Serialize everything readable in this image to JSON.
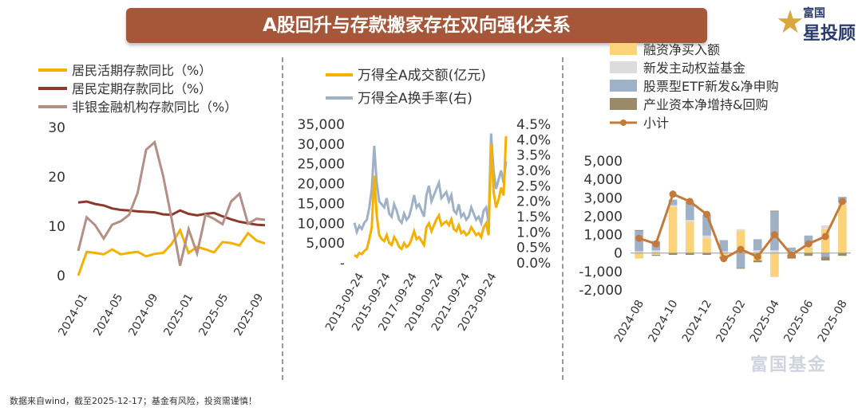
{
  "header": {
    "title": "A股回升与存款搬家存在双向强化关系",
    "logo_brand": "富国",
    "logo_sub": "星投顾",
    "logo_star_color": "#d9a640",
    "title_bg_color": "#a6573a"
  },
  "footer": {
    "note": "数据来自wind，截至2025-12-17；基金有风险，投资需谨慎！"
  },
  "watermark": {
    "text": "富国基金"
  },
  "chart_data": [
    {
      "type": "line",
      "title": "",
      "x_labels": [
        "2024-01",
        "2024-05",
        "2024-09",
        "2025-01",
        "2025-05",
        "2025-09"
      ],
      "ylim": [
        0,
        30
      ],
      "yticks": [
        "0",
        "10",
        "20",
        "30"
      ],
      "series": [
        {
          "name": "居民活期存款同比（%）",
          "color": "#f5b000",
          "values": [
            0,
            4.8,
            4.6,
            4.3,
            5.3,
            4.3,
            4.6,
            4.8,
            3.9,
            4.4,
            4.6,
            6.4,
            9.2,
            4.6,
            5.8,
            5.3,
            4.7,
            6.8,
            6.6,
            6.1,
            8.6,
            7.1,
            6.5
          ]
        },
        {
          "name": "居民定期存款同比（%）",
          "color": "#8b3a2c",
          "values": [
            14.8,
            15.0,
            14.5,
            14.2,
            13.6,
            13.3,
            13.2,
            13.0,
            12.9,
            12.8,
            12.4,
            12.3,
            13.2,
            12.5,
            12.2,
            12.5,
            12.7,
            12.0,
            11.4,
            10.9,
            10.6,
            10.3,
            10.2
          ]
        },
        {
          "name": "非银金融机构存款同比（%）",
          "color": "#b38f86",
          "values": [
            5,
            11.8,
            10.2,
            7.5,
            10.3,
            11.0,
            12.3,
            16.8,
            25.5,
            27,
            20.2,
            11.5,
            2.0,
            9.4,
            4.5,
            12.3,
            11.5,
            10.4,
            15.0,
            16.6,
            10.5,
            11.5,
            11.3
          ]
        }
      ]
    },
    {
      "type": "line",
      "title": "",
      "x_labels": [
        "2013-09-24",
        "2015-09-24",
        "2017-09-24",
        "2019-09-24",
        "2021-09-24",
        "2023-09-24"
      ],
      "ylim_left": [
        0,
        35000
      ],
      "yticks_left": [
        "-",
        "5,000",
        "10,000",
        "15,000",
        "20,000",
        "25,000",
        "30,000",
        "35,000"
      ],
      "ylim_right": [
        0,
        4.5
      ],
      "yticks_right": [
        "0.0%",
        "0.5%",
        "1.0%",
        "1.5%",
        "2.0%",
        "2.5%",
        "3.0%",
        "3.5%",
        "4.0%",
        "4.5%"
      ],
      "series": [
        {
          "name": "万得全A成交额(亿元)",
          "axis": "left",
          "color": "#f5b000",
          "values": [
            2000,
            1500,
            2500,
            2200,
            3000,
            3500,
            6000,
            9000,
            22000,
            12000,
            7000,
            6000,
            5500,
            7000,
            5000,
            4500,
            6500,
            5500,
            4000,
            3500,
            5000,
            4000,
            4500,
            6000,
            8000,
            6000,
            6500,
            5500,
            4500,
            9000,
            10000,
            8000,
            9500,
            11000,
            12000,
            9500,
            10000,
            10500,
            9500,
            11000,
            8500,
            8000,
            9500,
            7500,
            8000,
            7000,
            7500,
            9000,
            8000,
            7000,
            7500,
            6500,
            9000,
            10000,
            7000,
            30000,
            18000,
            14000,
            16000,
            19000,
            17000,
            32000
          ]
        },
        {
          "name": "万得全A换手率(右)",
          "axis": "right",
          "color": "#9fb1c6",
          "values": [
            1.3,
            1.0,
            1.2,
            1.1,
            1.3,
            1.4,
            1.8,
            2.4,
            3.8,
            2.6,
            2.0,
            1.9,
            1.8,
            2.1,
            1.6,
            1.5,
            1.9,
            1.7,
            1.4,
            1.3,
            1.6,
            1.4,
            1.5,
            1.8,
            2.2,
            1.8,
            1.9,
            1.7,
            1.5,
            2.2,
            2.5,
            2.0,
            2.2,
            2.4,
            2.6,
            2.1,
            2.2,
            2.3,
            2.0,
            2.2,
            1.7,
            1.6,
            1.9,
            1.5,
            1.6,
            1.4,
            1.5,
            1.8,
            1.6,
            1.4,
            1.5,
            1.3,
            1.7,
            1.8,
            1.3,
            4.2,
            3.0,
            2.4,
            2.7,
            3.0,
            2.6,
            3.3
          ]
        }
      ]
    },
    {
      "type": "bar",
      "title": "",
      "categories": [
        "2024-08",
        "2024-09",
        "2024-10",
        "2024-11",
        "2024-12",
        "2025-01",
        "2025-02",
        "2025-03",
        "2025-04",
        "2025-05",
        "2025-06",
        "2025-07",
        "2025-08"
      ],
      "x_labels": [
        "2024-08",
        "2024-10",
        "2024-12",
        "2025-02",
        "2025-04",
        "2025-06",
        "2025-08"
      ],
      "ylim": [
        -2000,
        5000
      ],
      "yticks": [
        "-2,000",
        "-1,000",
        "0",
        "1,000",
        "2,000",
        "3,000",
        "4,000",
        "5,000"
      ],
      "series": [
        {
          "name": "融资净买入额",
          "color": "#fcd37a",
          "values": [
            -300,
            -100,
            2500,
            1700,
            800,
            -200,
            1200,
            -400,
            -1300,
            -100,
            300,
            1300,
            2600
          ]
        },
        {
          "name": "新发主动权益基金",
          "color": "#dcdcdc",
          "values": [
            100,
            150,
            100,
            100,
            150,
            100,
            100,
            150,
            150,
            100,
            150,
            200,
            150
          ]
        },
        {
          "name": "股票型ETF新发&净申购",
          "color": "#9fb1c6",
          "values": [
            1100,
            500,
            300,
            1000,
            1100,
            600,
            -800,
            600,
            2100,
            200,
            500,
            -200,
            300
          ]
        },
        {
          "name": "产业资本净增持&回购",
          "color": "#9a8a6a",
          "values": [
            50,
            -50,
            -100,
            -100,
            -100,
            -100,
            -50,
            -100,
            50,
            -200,
            -150,
            -200,
            -150
          ]
        },
        {
          "name": "小计",
          "type": "line",
          "color": "#c47a3a",
          "values": [
            800,
            500,
            3200,
            2800,
            2100,
            -300,
            200,
            -200,
            1000,
            -100,
            500,
            900,
            2800
          ]
        }
      ]
    }
  ]
}
